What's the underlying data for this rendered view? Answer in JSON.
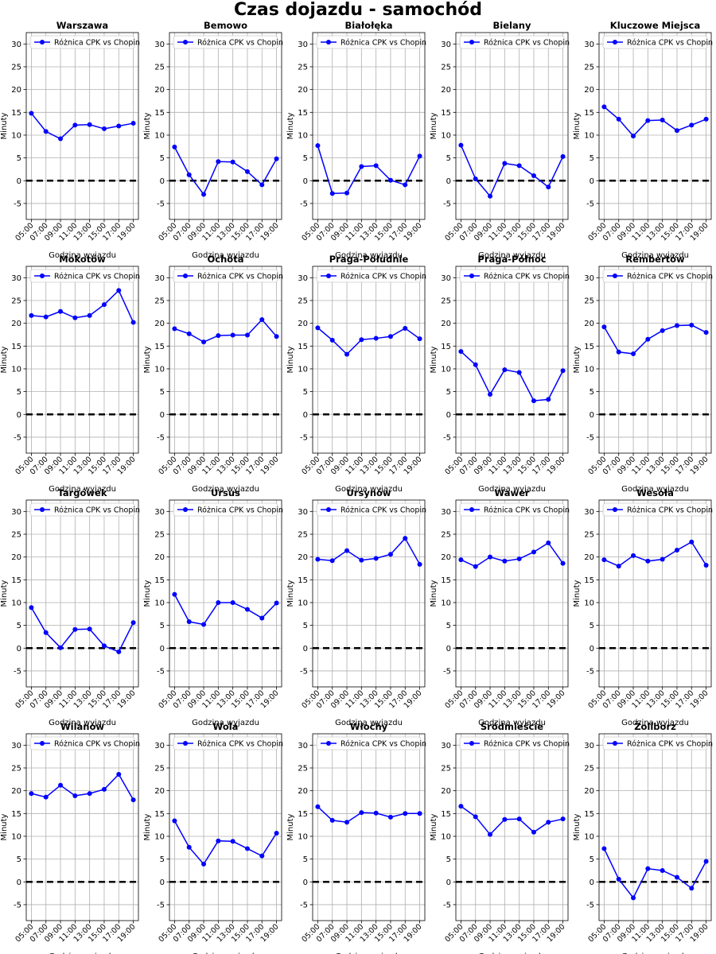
{
  "figure": {
    "title": "Czas dojazdu - samochód"
  },
  "chart_data": [
    {
      "type": "line",
      "title": "Warszawa",
      "xlabel": "Godzina wyjazdu",
      "ylabel": "Minuty",
      "categories": [
        "05:00",
        "07:00",
        "09:00",
        "11:00",
        "13:00",
        "15:00",
        "17:00",
        "19:00"
      ],
      "series": [
        {
          "name": "Różnica CPK vs Chopin",
          "values": [
            14.8,
            10.8,
            9.2,
            12.2,
            12.3,
            11.4,
            12.0,
            12.6
          ]
        }
      ],
      "ylim": [
        -8.5,
        32.5
      ],
      "yticks": [
        -5,
        0,
        5,
        10,
        15,
        20,
        25,
        30
      ],
      "reference_line": 0,
      "grid": true,
      "legend": "top-left",
      "color": "#0000ff"
    },
    {
      "type": "line",
      "title": "Bemowo",
      "xlabel": "Godzina wyjazdu",
      "ylabel": "Minuty",
      "categories": [
        "05:00",
        "07:00",
        "09:00",
        "11:00",
        "13:00",
        "15:00",
        "17:00",
        "19:00"
      ],
      "series": [
        {
          "name": "Różnica CPK vs Chopin",
          "values": [
            7.4,
            1.3,
            -3.0,
            4.2,
            4.1,
            2.0,
            -0.9,
            4.8
          ]
        }
      ],
      "ylim": [
        -8.5,
        32.5
      ],
      "yticks": [
        -5,
        0,
        5,
        10,
        15,
        20,
        25,
        30
      ],
      "reference_line": 0,
      "grid": true,
      "legend": "top-left",
      "color": "#0000ff"
    },
    {
      "type": "line",
      "title": "Białołęka",
      "xlabel": "Godzina wyjazdu",
      "ylabel": "Minuty",
      "categories": [
        "05:00",
        "07:00",
        "09:00",
        "11:00",
        "13:00",
        "15:00",
        "17:00",
        "19:00"
      ],
      "series": [
        {
          "name": "Różnica CPK vs Chopin",
          "values": [
            7.7,
            -2.8,
            -2.7,
            3.1,
            3.3,
            0.1,
            -0.9,
            5.4
          ]
        }
      ],
      "ylim": [
        -8.5,
        32.5
      ],
      "yticks": [
        -5,
        0,
        5,
        10,
        15,
        20,
        25,
        30
      ],
      "reference_line": 0,
      "grid": true,
      "legend": "top-left",
      "color": "#0000ff"
    },
    {
      "type": "line",
      "title": "Bielany",
      "xlabel": "Godzina wyjazdu",
      "ylabel": "Minuty",
      "categories": [
        "05:00",
        "07:00",
        "09:00",
        "11:00",
        "13:00",
        "15:00",
        "17:00",
        "19:00"
      ],
      "series": [
        {
          "name": "Różnica CPK vs Chopin",
          "values": [
            7.8,
            0.4,
            -3.4,
            3.8,
            3.3,
            1.1,
            -1.4,
            5.3
          ]
        }
      ],
      "ylim": [
        -8.5,
        32.5
      ],
      "yticks": [
        -5,
        0,
        5,
        10,
        15,
        20,
        25,
        30
      ],
      "reference_line": 0,
      "grid": true,
      "legend": "top-left",
      "color": "#0000ff"
    },
    {
      "type": "line",
      "title": "Kluczowe Miejsca",
      "xlabel": "Godzina wyjazdu",
      "ylabel": "Minuty",
      "categories": [
        "05:00",
        "07:00",
        "09:00",
        "11:00",
        "13:00",
        "15:00",
        "17:00",
        "19:00"
      ],
      "series": [
        {
          "name": "Różnica CPK vs Chopin",
          "values": [
            16.2,
            13.5,
            9.8,
            13.2,
            13.3,
            11.0,
            12.2,
            13.5
          ]
        }
      ],
      "ylim": [
        -8.5,
        32.5
      ],
      "yticks": [
        -5,
        0,
        5,
        10,
        15,
        20,
        25,
        30
      ],
      "reference_line": 0,
      "grid": true,
      "legend": "top-left",
      "color": "#0000ff"
    },
    {
      "type": "line",
      "title": "Mokotów",
      "xlabel": "Godzina wyjazdu",
      "ylabel": "Minuty",
      "categories": [
        "05:00",
        "07:00",
        "09:00",
        "11:00",
        "13:00",
        "15:00",
        "17:00",
        "19:00"
      ],
      "series": [
        {
          "name": "Różnica CPK vs Chopin",
          "values": [
            21.7,
            21.4,
            22.6,
            21.2,
            21.7,
            24.1,
            27.2,
            20.2
          ]
        }
      ],
      "ylim": [
        -8.5,
        32.5
      ],
      "yticks": [
        -5,
        0,
        5,
        10,
        15,
        20,
        25,
        30
      ],
      "reference_line": 0,
      "grid": true,
      "legend": "top-left",
      "color": "#0000ff"
    },
    {
      "type": "line",
      "title": "Ochota",
      "xlabel": "Godzina wyjazdu",
      "ylabel": "Minuty",
      "categories": [
        "05:00",
        "07:00",
        "09:00",
        "11:00",
        "13:00",
        "15:00",
        "17:00",
        "19:00"
      ],
      "series": [
        {
          "name": "Różnica CPK vs Chopin",
          "values": [
            18.8,
            17.7,
            15.9,
            17.3,
            17.4,
            17.4,
            20.8,
            17.1
          ]
        }
      ],
      "ylim": [
        -8.5,
        32.5
      ],
      "yticks": [
        -5,
        0,
        5,
        10,
        15,
        20,
        25,
        30
      ],
      "reference_line": 0,
      "grid": true,
      "legend": "top-left",
      "color": "#0000ff"
    },
    {
      "type": "line",
      "title": "Praga-Południe",
      "xlabel": "Godzina wyjazdu",
      "ylabel": "Minuty",
      "categories": [
        "05:00",
        "07:00",
        "09:00",
        "11:00",
        "13:00",
        "15:00",
        "17:00",
        "19:00"
      ],
      "series": [
        {
          "name": "Różnica CPK vs Chopin",
          "values": [
            19.0,
            16.3,
            13.2,
            16.4,
            16.7,
            17.1,
            18.9,
            16.6
          ]
        }
      ],
      "ylim": [
        -8.5,
        32.5
      ],
      "yticks": [
        -5,
        0,
        5,
        10,
        15,
        20,
        25,
        30
      ],
      "reference_line": 0,
      "grid": true,
      "legend": "top-left",
      "color": "#0000ff"
    },
    {
      "type": "line",
      "title": "Praga-Północ",
      "xlabel": "Godzina wyjazdu",
      "ylabel": "Minuty",
      "categories": [
        "05:00",
        "07:00",
        "09:00",
        "11:00",
        "13:00",
        "15:00",
        "17:00",
        "19:00"
      ],
      "series": [
        {
          "name": "Różnica CPK vs Chopin",
          "values": [
            13.8,
            10.9,
            4.4,
            9.8,
            9.2,
            3.0,
            3.3,
            9.6
          ]
        }
      ],
      "ylim": [
        -8.5,
        32.5
      ],
      "yticks": [
        -5,
        0,
        5,
        10,
        15,
        20,
        25,
        30
      ],
      "reference_line": 0,
      "grid": true,
      "legend": "top-left",
      "color": "#0000ff"
    },
    {
      "type": "line",
      "title": "Rembertów",
      "xlabel": "Godzina wyjazdu",
      "ylabel": "Minuty",
      "categories": [
        "05:00",
        "07:00",
        "09:00",
        "11:00",
        "13:00",
        "15:00",
        "17:00",
        "19:00"
      ],
      "series": [
        {
          "name": "Różnica CPK vs Chopin",
          "values": [
            19.2,
            13.7,
            13.3,
            16.5,
            18.4,
            19.5,
            19.6,
            18.0
          ]
        }
      ],
      "ylim": [
        -8.5,
        32.5
      ],
      "yticks": [
        -5,
        0,
        5,
        10,
        15,
        20,
        25,
        30
      ],
      "reference_line": 0,
      "grid": true,
      "legend": "top-left",
      "color": "#0000ff"
    },
    {
      "type": "line",
      "title": "Targówek",
      "xlabel": "Godzina wyjazdu",
      "ylabel": "Minuty",
      "categories": [
        "05:00",
        "07:00",
        "09:00",
        "11:00",
        "13:00",
        "15:00",
        "17:00",
        "19:00"
      ],
      "series": [
        {
          "name": "Różnica CPK vs Chopin",
          "values": [
            8.9,
            3.4,
            0.1,
            4.1,
            4.2,
            0.5,
            -0.8,
            5.6
          ]
        }
      ],
      "ylim": [
        -8.5,
        32.5
      ],
      "yticks": [
        -5,
        0,
        5,
        10,
        15,
        20,
        25,
        30
      ],
      "reference_line": 0,
      "grid": true,
      "legend": "top-left",
      "color": "#0000ff"
    },
    {
      "type": "line",
      "title": "Ursus",
      "xlabel": "Godzina wyjazdu",
      "ylabel": "Minuty",
      "categories": [
        "05:00",
        "07:00",
        "09:00",
        "11:00",
        "13:00",
        "15:00",
        "17:00",
        "19:00"
      ],
      "series": [
        {
          "name": "Różnica CPK vs Chopin",
          "values": [
            11.8,
            5.8,
            5.2,
            10.0,
            10.0,
            8.5,
            6.6,
            9.9
          ]
        }
      ],
      "ylim": [
        -8.5,
        32.5
      ],
      "yticks": [
        -5,
        0,
        5,
        10,
        15,
        20,
        25,
        30
      ],
      "reference_line": 0,
      "grid": true,
      "legend": "top-left",
      "color": "#0000ff"
    },
    {
      "type": "line",
      "title": "Ursynów",
      "xlabel": "Godzina wyjazdu",
      "ylabel": "Minuty",
      "categories": [
        "05:00",
        "07:00",
        "09:00",
        "11:00",
        "13:00",
        "15:00",
        "17:00",
        "19:00"
      ],
      "series": [
        {
          "name": "Różnica CPK vs Chopin",
          "values": [
            19.5,
            19.2,
            21.4,
            19.3,
            19.7,
            20.6,
            24.1,
            18.4
          ]
        }
      ],
      "ylim": [
        -8.5,
        32.5
      ],
      "yticks": [
        -5,
        0,
        5,
        10,
        15,
        20,
        25,
        30
      ],
      "reference_line": 0,
      "grid": true,
      "legend": "top-left",
      "color": "#0000ff"
    },
    {
      "type": "line",
      "title": "Wawer",
      "xlabel": "Godzina wyjazdu",
      "ylabel": "Minuty",
      "categories": [
        "05:00",
        "07:00",
        "09:00",
        "11:00",
        "13:00",
        "15:00",
        "17:00",
        "19:00"
      ],
      "series": [
        {
          "name": "Różnica CPK vs Chopin",
          "values": [
            19.4,
            17.9,
            20.0,
            19.1,
            19.6,
            21.1,
            23.1,
            18.6
          ]
        }
      ],
      "ylim": [
        -8.5,
        32.5
      ],
      "yticks": [
        -5,
        0,
        5,
        10,
        15,
        20,
        25,
        30
      ],
      "reference_line": 0,
      "grid": true,
      "legend": "top-left",
      "color": "#0000ff"
    },
    {
      "type": "line",
      "title": "Wesoła",
      "xlabel": "Godzina wyjazdu",
      "ylabel": "Minuty",
      "categories": [
        "05:00",
        "07:00",
        "09:00",
        "11:00",
        "13:00",
        "15:00",
        "17:00",
        "19:00"
      ],
      "series": [
        {
          "name": "Różnica CPK vs Chopin",
          "values": [
            19.4,
            18.0,
            20.3,
            19.1,
            19.5,
            21.5,
            23.3,
            18.2
          ]
        }
      ],
      "ylim": [
        -8.5,
        32.5
      ],
      "yticks": [
        -5,
        0,
        5,
        10,
        15,
        20,
        25,
        30
      ],
      "reference_line": 0,
      "grid": true,
      "legend": "top-left",
      "color": "#0000ff"
    },
    {
      "type": "line",
      "title": "Wilanów",
      "xlabel": "Godzina wyjazdu",
      "ylabel": "Minuty",
      "categories": [
        "05:00",
        "07:00",
        "09:00",
        "11:00",
        "13:00",
        "15:00",
        "17:00",
        "19:00"
      ],
      "series": [
        {
          "name": "Różnica CPK vs Chopin",
          "values": [
            19.4,
            18.6,
            21.2,
            18.9,
            19.4,
            20.3,
            23.6,
            18.0
          ]
        }
      ],
      "ylim": [
        -8.5,
        32.5
      ],
      "yticks": [
        -5,
        0,
        5,
        10,
        15,
        20,
        25,
        30
      ],
      "reference_line": 0,
      "grid": true,
      "legend": "top-left",
      "color": "#0000ff"
    },
    {
      "type": "line",
      "title": "Wola",
      "xlabel": "Godzina wyjazdu",
      "ylabel": "Minuty",
      "categories": [
        "05:00",
        "07:00",
        "09:00",
        "11:00",
        "13:00",
        "15:00",
        "17:00",
        "19:00"
      ],
      "series": [
        {
          "name": "Różnica CPK vs Chopin",
          "values": [
            13.4,
            7.6,
            3.9,
            9.0,
            8.9,
            7.3,
            5.7,
            10.7
          ]
        }
      ],
      "ylim": [
        -8.5,
        32.5
      ],
      "yticks": [
        -5,
        0,
        5,
        10,
        15,
        20,
        25,
        30
      ],
      "reference_line": 0,
      "grid": true,
      "legend": "top-left",
      "color": "#0000ff"
    },
    {
      "type": "line",
      "title": "Włochy",
      "xlabel": "Godzina wyjazdu",
      "ylabel": "Minuty",
      "categories": [
        "05:00",
        "07:00",
        "09:00",
        "11:00",
        "13:00",
        "15:00",
        "17:00",
        "19:00"
      ],
      "series": [
        {
          "name": "Różnica CPK vs Chopin",
          "values": [
            16.5,
            13.5,
            13.1,
            15.2,
            15.1,
            14.2,
            15.0,
            15.0
          ]
        }
      ],
      "ylim": [
        -8.5,
        32.5
      ],
      "yticks": [
        -5,
        0,
        5,
        10,
        15,
        20,
        25,
        30
      ],
      "reference_line": 0,
      "grid": true,
      "legend": "top-left",
      "color": "#0000ff"
    },
    {
      "type": "line",
      "title": "Śródmieście",
      "xlabel": "Godzina wyjazdu",
      "ylabel": "Minuty",
      "categories": [
        "05:00",
        "07:00",
        "09:00",
        "11:00",
        "13:00",
        "15:00",
        "17:00",
        "19:00"
      ],
      "series": [
        {
          "name": "Różnica CPK vs Chopin",
          "values": [
            16.6,
            14.3,
            10.4,
            13.7,
            13.8,
            10.9,
            13.1,
            13.8
          ]
        }
      ],
      "ylim": [
        -8.5,
        32.5
      ],
      "yticks": [
        -5,
        0,
        5,
        10,
        15,
        20,
        25,
        30
      ],
      "reference_line": 0,
      "grid": true,
      "legend": "top-left",
      "color": "#0000ff"
    },
    {
      "type": "line",
      "title": "Żoliborz",
      "xlabel": "Godzina wyjazdu",
      "ylabel": "Minuty",
      "categories": [
        "05:00",
        "07:00",
        "09:00",
        "11:00",
        "13:00",
        "15:00",
        "17:00",
        "19:00"
      ],
      "series": [
        {
          "name": "Różnica CPK vs Chopin",
          "values": [
            7.3,
            0.6,
            -3.5,
            2.9,
            2.5,
            1.0,
            -1.4,
            4.5
          ]
        }
      ],
      "ylim": [
        -8.5,
        32.5
      ],
      "yticks": [
        -5,
        0,
        5,
        10,
        15,
        20,
        25,
        30
      ],
      "reference_line": 0,
      "grid": true,
      "legend": "top-left",
      "color": "#0000ff"
    }
  ]
}
